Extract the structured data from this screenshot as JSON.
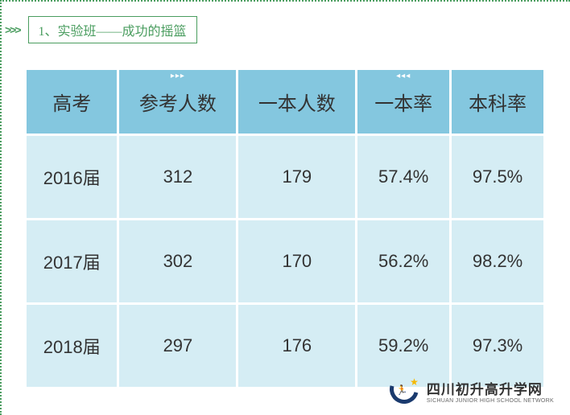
{
  "title": "1、实验班——成功的摇篮",
  "table": {
    "columns": [
      "高考",
      "参考人数",
      "一本人数",
      "一本率",
      "本科率"
    ],
    "rows": [
      [
        "2016届",
        "312",
        "179",
        "57.4%",
        "97.5%"
      ],
      [
        "2017届",
        "302",
        "170",
        "56.2%",
        "98.2%"
      ],
      [
        "2018届",
        "297",
        "176",
        "59.2%",
        "97.3%"
      ]
    ],
    "header_bg": "#84c7df",
    "cell_bg": "#d5edf4",
    "header_fontsize": 24,
    "cell_fontsize": 22
  },
  "border_color": "#4a9d5f",
  "logo": {
    "main": "四川初升高升学网",
    "sub": "SICHUAN JUNIOR HIGH SCHOOL NETWORK"
  }
}
